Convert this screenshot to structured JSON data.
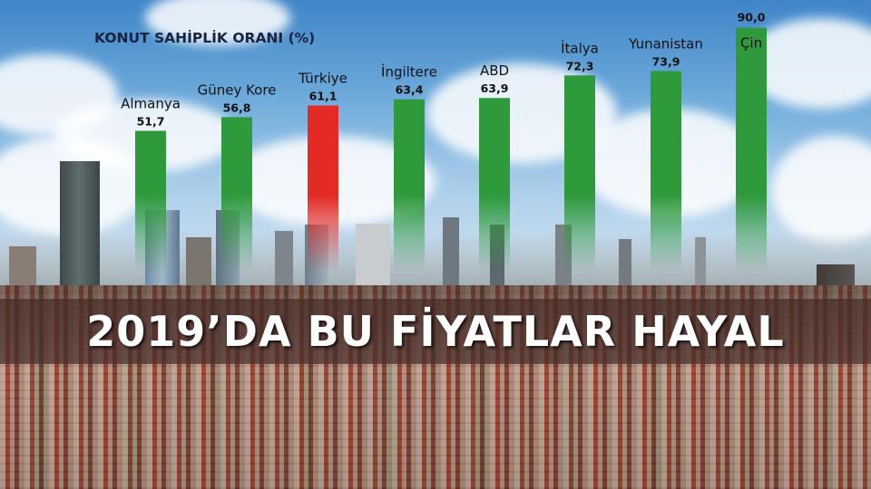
{
  "headline": "2019’DA BU FİYATLAR HAYAL",
  "colors": {
    "bar_default": "#2f9a3c",
    "bar_highlight": "#e32a24"
  },
  "chart_data": {
    "type": "bar",
    "title": "KONUT SAHİPLİK ORANI (%)",
    "xlabel": "",
    "ylabel": "",
    "categories": [
      "Almanya",
      "Güney Kore",
      "Türkiye",
      "İngiltere",
      "ABD",
      "İtalya",
      "Yunanistan",
      "Çin"
    ],
    "values": [
      51.7,
      56.8,
      61.1,
      63.4,
      63.9,
      72.3,
      73.9,
      90.0
    ],
    "value_labels": [
      "51,7",
      "56,8",
      "61,1",
      "63,4",
      "63,9",
      "72,3",
      "73,9",
      "90,0"
    ],
    "highlight": "Türkiye",
    "grid": false,
    "legend": "none"
  }
}
